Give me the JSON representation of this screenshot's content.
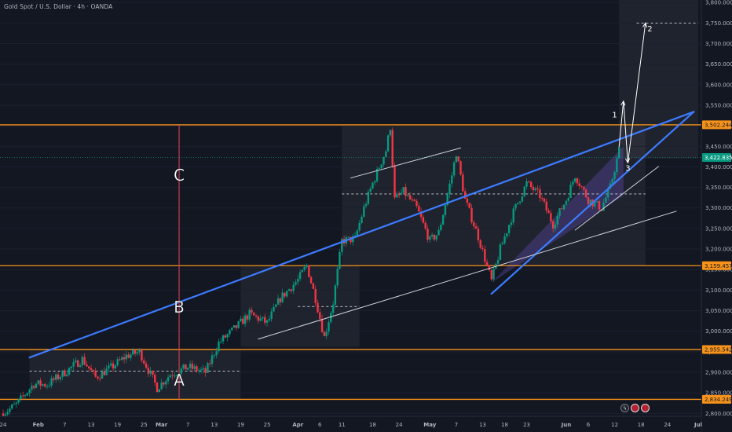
{
  "header": {
    "title": "Gold Spot / U.S. Dollar · 4h · OANDA"
  },
  "chart_data": {
    "type": "candlestick",
    "symbol": "Gold Spot / U.S. Dollar",
    "interval": "4h",
    "source": "OANDA",
    "price_ticks": [
      2800,
      2850,
      2900,
      2950,
      3000,
      3050,
      3100,
      3150,
      3200,
      3250,
      3300,
      3350,
      3400,
      3450,
      3500,
      3550,
      3600,
      3650,
      3700,
      3750,
      3800
    ],
    "price_tick_labels": [
      "2,800.000",
      "2,850.000",
      "2,900.000",
      "2,950.000",
      "3,000.000",
      "3,050.000",
      "3,100.000",
      "3,150.000",
      "3,200.000",
      "3,250.000",
      "3,300.000",
      "3,350.000",
      "3,400.000",
      "3,450.000",
      "3,500.000",
      "3,550.000",
      "3,600.000",
      "3,650.000",
      "3,700.000",
      "3,750.000",
      "3,800.000"
    ],
    "ylim": [
      2793,
      3806
    ],
    "xlim": [
      "2025-01-24",
      "2025-07-01"
    ],
    "time_ticks": [
      {
        "date": "2025-01-24",
        "label": "24"
      },
      {
        "date": "2025-02-01",
        "label": "Feb",
        "month": true
      },
      {
        "date": "2025-02-07",
        "label": "7"
      },
      {
        "date": "2025-02-13",
        "label": "13"
      },
      {
        "date": "2025-02-19",
        "label": "19"
      },
      {
        "date": "2025-02-25",
        "label": "25"
      },
      {
        "date": "2025-03-01",
        "label": "Mar",
        "month": true
      },
      {
        "date": "2025-03-07",
        "label": "7"
      },
      {
        "date": "2025-03-13",
        "label": "13"
      },
      {
        "date": "2025-03-19",
        "label": "19"
      },
      {
        "date": "2025-03-25",
        "label": "25"
      },
      {
        "date": "2025-04-01",
        "label": "Apr",
        "month": true
      },
      {
        "date": "2025-04-06",
        "label": "6"
      },
      {
        "date": "2025-04-11",
        "label": "11"
      },
      {
        "date": "2025-04-18",
        "label": "18"
      },
      {
        "date": "2025-04-24",
        "label": "24"
      },
      {
        "date": "2025-05-01",
        "label": "May",
        "month": true
      },
      {
        "date": "2025-05-07",
        "label": "7"
      },
      {
        "date": "2025-05-13",
        "label": "13"
      },
      {
        "date": "2025-05-18",
        "label": "18"
      },
      {
        "date": "2025-05-23",
        "label": "23"
      },
      {
        "date": "2025-06-01",
        "label": "Jun",
        "month": true
      },
      {
        "date": "2025-06-06",
        "label": "6"
      },
      {
        "date": "2025-06-12",
        "label": "12"
      },
      {
        "date": "2025-06-18",
        "label": "18"
      },
      {
        "date": "2025-06-24",
        "label": "24"
      },
      {
        "date": "2025-07-01",
        "label": "Jul",
        "month": true
      }
    ],
    "horizontal_levels": [
      {
        "price": 3502.244,
        "label": "3,502.244",
        "color": "#f7931a"
      },
      {
        "price": 3159.457,
        "label": "3,159.457",
        "color": "#f7931a"
      },
      {
        "price": 2955.542,
        "label": "2,955.542",
        "color": "#f7931a"
      },
      {
        "price": 2834.249,
        "label": "2,834.249",
        "color": "#f7931a"
      }
    ],
    "current_price": {
      "price": 3422.835,
      "label": "3,422.835",
      "color": "#089981"
    },
    "dashed_levels": [
      {
        "price": 3750,
        "start": "2025-06-17",
        "end": "2025-07-01"
      },
      {
        "price": 3334,
        "start": "2025-04-11",
        "end": "2025-06-19"
      },
      {
        "price": 3060,
        "start": "2025-04-01",
        "end": "2025-04-15"
      },
      {
        "price": 2903,
        "start": "2025-01-30",
        "end": "2025-03-19"
      }
    ],
    "consolidation_boxes": [
      {
        "start": "2025-01-30",
        "end": "2025-03-19",
        "low": 2834.249,
        "high": 2955.542
      },
      {
        "start": "2025-03-19",
        "end": "2025-04-15",
        "low": 2962,
        "high": 3159.457
      },
      {
        "start": "2025-04-11",
        "end": "2025-06-19",
        "low": 3159.457,
        "high": 3502.244
      },
      {
        "start": "2025-06-13",
        "end": "2025-07-01",
        "low": 3420,
        "high": 3806
      }
    ],
    "trendlines": [
      {
        "from": {
          "date": "2025-01-30",
          "price": 2936
        },
        "to": {
          "date": "2025-06-30",
          "price": 3534
        },
        "color": "#3d7bff",
        "width": 2.2
      },
      {
        "from": {
          "date": "2025-05-15",
          "price": 3091
        },
        "to": {
          "date": "2025-06-30",
          "price": 3534
        },
        "color": "#3d7bff",
        "width": 2.2
      },
      {
        "from": {
          "date": "2025-03-23",
          "price": 2981
        },
        "to": {
          "date": "2025-06-26",
          "price": 3292
        },
        "color": "#d1d4dc",
        "width": 1
      },
      {
        "from": {
          "date": "2025-04-13",
          "price": 3373
        },
        "to": {
          "date": "2025-05-08",
          "price": 3446
        },
        "color": "#d1d4dc",
        "width": 1
      },
      {
        "from": {
          "date": "2025-06-03",
          "price": 3246
        },
        "to": {
          "date": "2025-06-22",
          "price": 3401
        },
        "color": "#d1d4dc",
        "width": 1
      }
    ],
    "wedge": {
      "points": [
        {
          "date": "2025-05-15",
          "price": 3118
        },
        {
          "date": "2025-06-14",
          "price": 3450
        },
        {
          "date": "2025-06-14",
          "price": 3330
        }
      ],
      "fill": "rgba(120,90,220,0.28)"
    },
    "vertical_marker": {
      "date": "2025-03-05",
      "from": 2834.249,
      "to": 3502.244,
      "color": "#e04555"
    },
    "wave_labels": [
      {
        "text": "A",
        "date": "2025-03-05",
        "price": 2868
      },
      {
        "text": "B",
        "date": "2025-03-05",
        "price": 3045
      },
      {
        "text": "C",
        "date": "2025-03-05",
        "price": 3366
      }
    ],
    "projection_labels": [
      {
        "text": "1",
        "date": "2025-06-12",
        "price": 3520
      },
      {
        "text": "2",
        "date": "2025-06-20",
        "price": 3730
      },
      {
        "text": "3",
        "date": "2025-06-15",
        "price": 3390
      }
    ],
    "projection_path": [
      {
        "date": "2025-06-13",
        "price": 3448
      },
      {
        "date": "2025-06-14",
        "price": 3560
      },
      {
        "date": "2025-06-15",
        "price": 3410
      },
      {
        "date": "2025-06-19",
        "price": 3750
      }
    ],
    "price_path": [
      {
        "date": "2025-01-24",
        "price": 2800
      },
      {
        "date": "2025-01-27",
        "price": 2822
      },
      {
        "date": "2025-01-31",
        "price": 2872
      },
      {
        "date": "2025-02-03",
        "price": 2870
      },
      {
        "date": "2025-02-07",
        "price": 2900
      },
      {
        "date": "2025-02-11",
        "price": 2932
      },
      {
        "date": "2025-02-14",
        "price": 2888
      },
      {
        "date": "2025-02-18",
        "price": 2915
      },
      {
        "date": "2025-02-21",
        "price": 2940
      },
      {
        "date": "2025-02-24",
        "price": 2950
      },
      {
        "date": "2025-02-28",
        "price": 2862
      },
      {
        "date": "2025-03-03",
        "price": 2895
      },
      {
        "date": "2025-03-07",
        "price": 2913
      },
      {
        "date": "2025-03-11",
        "price": 2900
      },
      {
        "date": "2025-03-14",
        "price": 2972
      },
      {
        "date": "2025-03-18",
        "price": 3010
      },
      {
        "date": "2025-03-21",
        "price": 3042
      },
      {
        "date": "2025-03-25",
        "price": 3020
      },
      {
        "date": "2025-03-28",
        "price": 3080
      },
      {
        "date": "2025-04-01",
        "price": 3125
      },
      {
        "date": "2025-04-03",
        "price": 3160
      },
      {
        "date": "2025-04-05",
        "price": 3080
      },
      {
        "date": "2025-04-07",
        "price": 2985
      },
      {
        "date": "2025-04-09",
        "price": 3070
      },
      {
        "date": "2025-04-11",
        "price": 3220
      },
      {
        "date": "2025-04-14",
        "price": 3225
      },
      {
        "date": "2025-04-16",
        "price": 3300
      },
      {
        "date": "2025-04-18",
        "price": 3360
      },
      {
        "date": "2025-04-21",
        "price": 3440
      },
      {
        "date": "2025-04-22",
        "price": 3498
      },
      {
        "date": "2025-04-23",
        "price": 3320
      },
      {
        "date": "2025-04-25",
        "price": 3340
      },
      {
        "date": "2025-04-28",
        "price": 3300
      },
      {
        "date": "2025-05-01",
        "price": 3220
      },
      {
        "date": "2025-05-03",
        "price": 3240
      },
      {
        "date": "2025-05-06",
        "price": 3380
      },
      {
        "date": "2025-05-07",
        "price": 3435
      },
      {
        "date": "2025-05-09",
        "price": 3320
      },
      {
        "date": "2025-05-12",
        "price": 3230
      },
      {
        "date": "2025-05-15",
        "price": 3122
      },
      {
        "date": "2025-05-17",
        "price": 3200
      },
      {
        "date": "2025-05-20",
        "price": 3290
      },
      {
        "date": "2025-05-23",
        "price": 3360
      },
      {
        "date": "2025-05-26",
        "price": 3330
      },
      {
        "date": "2025-05-29",
        "price": 3260
      },
      {
        "date": "2025-06-01",
        "price": 3320
      },
      {
        "date": "2025-06-03",
        "price": 3380
      },
      {
        "date": "2025-06-06",
        "price": 3320
      },
      {
        "date": "2025-06-09",
        "price": 3300
      },
      {
        "date": "2025-06-11",
        "price": 3350
      },
      {
        "date": "2025-06-13",
        "price": 3440
      }
    ]
  }
}
